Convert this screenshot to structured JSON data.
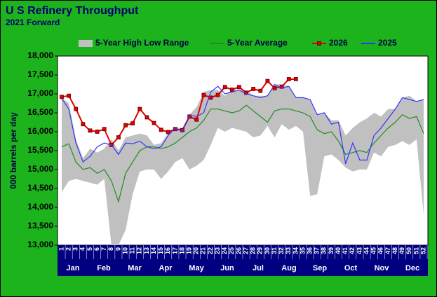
{
  "chart_data": {
    "type": "line",
    "title": "U S  Refinery Throughput",
    "subtitle": "2021 Forward",
    "y_label": "000 barrels per day",
    "categories": [
      "1",
      "2",
      "3",
      "4",
      "5",
      "6",
      "7",
      "8",
      "9",
      "10",
      "11",
      "12",
      "13",
      "14",
      "15",
      "16",
      "17",
      "18",
      "19",
      "20",
      "21",
      "22",
      "23",
      "24",
      "25",
      "26",
      "27",
      "28",
      "29",
      "30",
      "31",
      "32",
      "33",
      "34",
      "35",
      "36",
      "37",
      "38",
      "39",
      "40",
      "41",
      "42",
      "43",
      "44",
      "45",
      "46",
      "47",
      "48",
      "49",
      "50",
      "51",
      "52"
    ],
    "month_labels": [
      "Jan",
      "Feb",
      "Mar",
      "Apr",
      "May",
      "Jun",
      "Jul",
      "Aug",
      "Sep",
      "Oct",
      "Nov",
      "Dec"
    ],
    "ylim": [
      13000,
      18000
    ],
    "yticks": [
      {
        "value": 13000,
        "label": "13,000"
      },
      {
        "value": 13500,
        "label": "13,500"
      },
      {
        "value": 14000,
        "label": "14,000"
      },
      {
        "value": 14500,
        "label": "14,500"
      },
      {
        "value": 15000,
        "label": "15,000"
      },
      {
        "value": 15500,
        "label": "15,500"
      },
      {
        "value": 16000,
        "label": "16,000"
      },
      {
        "value": 16500,
        "label": "16,500"
      },
      {
        "value": 17000,
        "label": "17,000"
      },
      {
        "value": 17500,
        "label": "17,500"
      },
      {
        "value": 18000,
        "label": "18,000"
      }
    ],
    "range": {
      "name": "5-Year High Low Range",
      "color": "#c0c0c0",
      "high": [
        16900,
        16750,
        15800,
        15300,
        15550,
        15450,
        15550,
        15800,
        15500,
        15850,
        15900,
        15950,
        15900,
        15650,
        15700,
        15950,
        16100,
        16100,
        16450,
        16650,
        17050,
        17100,
        17100,
        16950,
        17100,
        17100,
        17100,
        16950,
        16950,
        16950,
        17250,
        17250,
        17200,
        16900,
        16900,
        16850,
        16450,
        16500,
        16300,
        16300,
        15900,
        16100,
        16250,
        16350,
        16500,
        16400,
        16600,
        16600,
        16900,
        16950,
        16800,
        16850
      ],
      "low": [
        14400,
        14700,
        14750,
        14700,
        14650,
        14600,
        14750,
        13000,
        13000,
        13400,
        14350,
        14950,
        15000,
        15000,
        14750,
        14950,
        15200,
        15300,
        15000,
        15100,
        15250,
        15650,
        16100,
        16000,
        16100,
        16050,
        16000,
        15850,
        15900,
        16150,
        15850,
        16200,
        16050,
        16150,
        16000,
        14300,
        14350,
        15350,
        15400,
        15250,
        15050,
        14950,
        15000,
        15000,
        15450,
        15350,
        15600,
        15650,
        15750,
        15650,
        15800,
        13800
      ]
    },
    "series": [
      {
        "name": "5-Year Average",
        "color": "#228b22",
        "values": [
          15600,
          15680,
          15200,
          15000,
          15050,
          14900,
          15000,
          14700,
          14150,
          14900,
          15200,
          15500,
          15600,
          15600,
          15550,
          15600,
          15700,
          15850,
          16000,
          16100,
          16300,
          16600,
          16600,
          16550,
          16500,
          16550,
          16700,
          16550,
          16400,
          16250,
          16550,
          16600,
          16600,
          16550,
          16500,
          16400,
          16050,
          15950,
          16000,
          15750,
          15400,
          15450,
          15500,
          15450,
          15700,
          15900,
          16100,
          16250,
          16450,
          16350,
          16400,
          15950
        ]
      },
      {
        "name": "2026",
        "color": "#e00000",
        "marker": "square",
        "values": [
          16920,
          16950,
          16600,
          16200,
          16030,
          16000,
          16070,
          15650,
          15850,
          16170,
          16220,
          16600,
          16380,
          16230,
          16050,
          15990,
          16070,
          16040,
          16400,
          16320,
          16970,
          16900,
          16970,
          17180,
          17110,
          17180,
          17030,
          17130,
          17080,
          17340,
          17150,
          17190,
          17390,
          17390,
          null,
          null,
          null,
          null,
          null,
          null,
          null,
          null,
          null,
          null,
          null,
          null,
          null,
          null,
          null,
          null,
          null,
          null
        ]
      },
      {
        "name": "2025",
        "color": "#3333ff",
        "values": [
          16880,
          16600,
          15700,
          15200,
          15350,
          15600,
          15700,
          15650,
          15400,
          15700,
          15680,
          15750,
          15600,
          15550,
          15600,
          15900,
          16100,
          16000,
          16450,
          16400,
          16500,
          17050,
          17200,
          17000,
          17050,
          17100,
          17000,
          16950,
          16900,
          16950,
          17250,
          17150,
          17200,
          16900,
          16900,
          16850,
          16450,
          16500,
          16200,
          16250,
          15150,
          15700,
          15250,
          15250,
          15900,
          16100,
          16350,
          16600,
          16900,
          16850,
          16800,
          16850
        ]
      }
    ]
  }
}
